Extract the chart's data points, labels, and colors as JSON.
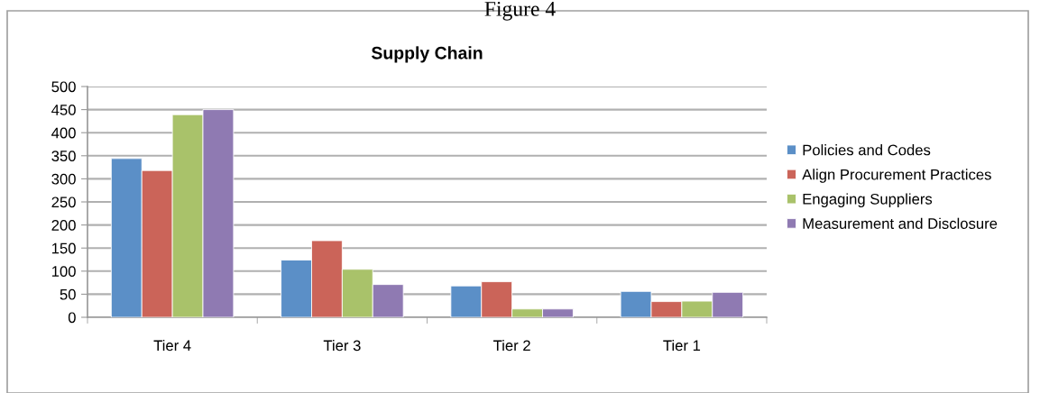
{
  "chart_data": {
    "type": "bar",
    "title": "Supply Chain",
    "annotations": [
      "Figure 4"
    ],
    "categories": [
      "Tier 4",
      "Tier 3",
      "Tier 2",
      "Tier 1"
    ],
    "series": [
      {
        "name": "Policies and Codes",
        "color": "#5b8fc7",
        "values": [
          344,
          124,
          68,
          56
        ]
      },
      {
        "name": "Align Procurement Practices",
        "color": "#cb6459",
        "values": [
          318,
          166,
          77,
          34
        ]
      },
      {
        "name": "Engaging Suppliers",
        "color": "#a9c26a",
        "values": [
          439,
          104,
          18,
          35
        ]
      },
      {
        "name": "Measurement and Disclosure",
        "color": "#8f7ab2",
        "values": [
          450,
          71,
          18,
          54
        ]
      }
    ],
    "ylim": [
      0,
      500
    ],
    "yticks": [
      0,
      50,
      100,
      150,
      200,
      250,
      300,
      350,
      400,
      450,
      500
    ],
    "grid": "y",
    "legend": "right"
  }
}
